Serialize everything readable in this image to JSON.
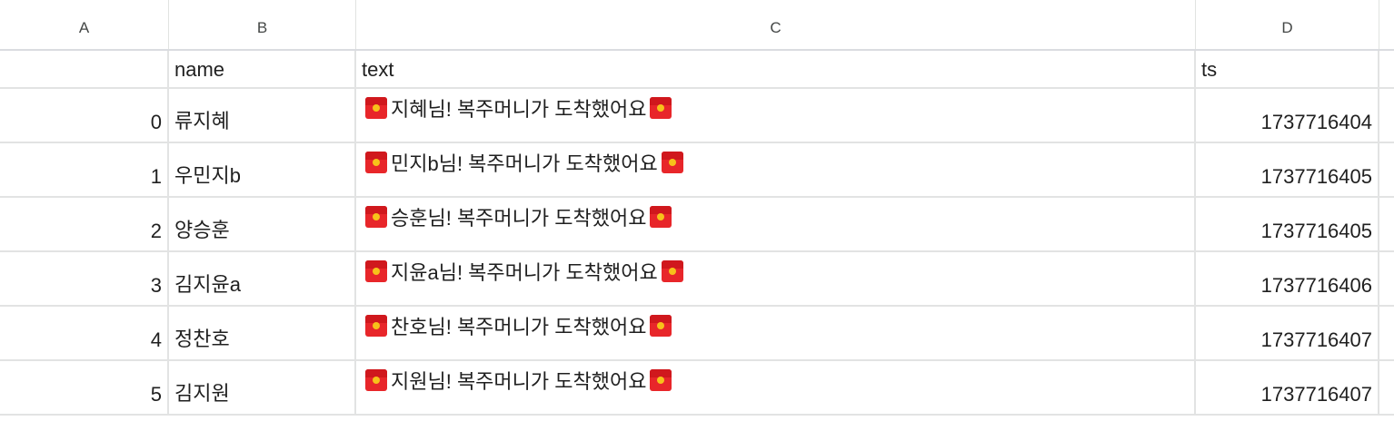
{
  "columns": [
    "A",
    "B",
    "C",
    "D"
  ],
  "header": {
    "index": "",
    "name": "name",
    "text": "text",
    "ts": "ts"
  },
  "icons": {
    "message_icon": "red-envelope-icon"
  },
  "colors": {
    "envelope": "#e8262a",
    "envelope_seal": "#f7c21a",
    "grid_line": "#e2e3e3"
  },
  "rows": [
    {
      "index": "0",
      "name": "류지혜",
      "text": "지혜님! 복주머니가 도착했어요",
      "ts": "1737716404"
    },
    {
      "index": "1",
      "name": "우민지b",
      "text": "민지b님! 복주머니가 도착했어요",
      "ts": "1737716405"
    },
    {
      "index": "2",
      "name": "양승훈",
      "text": "승훈님! 복주머니가 도착했어요",
      "ts": "1737716405"
    },
    {
      "index": "3",
      "name": "김지윤a",
      "text": "지윤a님! 복주머니가 도착했어요",
      "ts": "1737716406"
    },
    {
      "index": "4",
      "name": "정찬호",
      "text": "찬호님! 복주머니가 도착했어요",
      "ts": "1737716407"
    },
    {
      "index": "5",
      "name": "김지원",
      "text": "지원님! 복주머니가 도착했어요",
      "ts": "1737716407"
    }
  ]
}
